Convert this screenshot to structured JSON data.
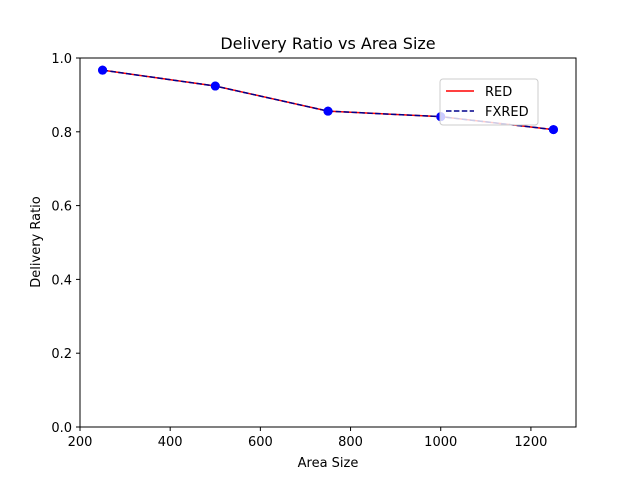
{
  "chart_data": {
    "type": "line",
    "title": "Delivery Ratio vs Area Size",
    "xlabel": "Area Size",
    "ylabel": "Delivery Ratio",
    "x": [
      250,
      500,
      750,
      1000,
      1250
    ],
    "series": [
      {
        "name": "RED",
        "values": [
          0.967,
          0.924,
          0.856,
          0.841,
          0.806
        ],
        "color": "#ff0000",
        "line_style": "solid",
        "marker": "circle"
      },
      {
        "name": "FXRED",
        "values": [
          0.967,
          0.924,
          0.856,
          0.841,
          0.806
        ],
        "color": "#00008b",
        "line_style": "dashed",
        "marker": "circle"
      }
    ],
    "marker_color": "#0000ff",
    "xlim": [
      200,
      1300
    ],
    "ylim": [
      0.0,
      1.0
    ],
    "xticks": [
      200,
      400,
      600,
      800,
      1000,
      1200
    ],
    "xtick_labels": [
      "200",
      "400",
      "600",
      "800",
      "1000",
      "1200"
    ],
    "yticks": [
      0.0,
      0.2,
      0.4,
      0.6,
      0.8,
      1.0
    ],
    "ytick_labels": [
      "0.0",
      "0.2",
      "0.4",
      "0.6",
      "0.8",
      "1.0"
    ],
    "grid": false,
    "legend_position": "upper-right"
  }
}
